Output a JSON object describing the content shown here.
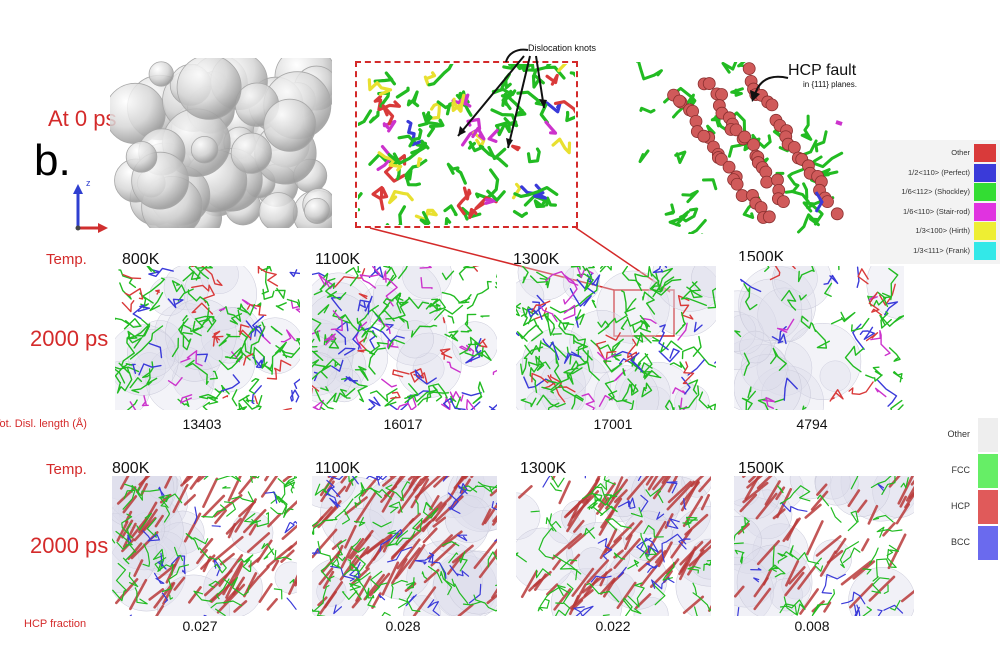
{
  "panel_label": "b.",
  "at_time_label": "At 0 ps",
  "knots_label": "Dislocation knots",
  "hcp_fault": {
    "title": "HCP fault",
    "subtitle": "in {111} planes."
  },
  "axes": {
    "z": "z"
  },
  "row1": {
    "temp_label": "Temp.",
    "time_label": "2000 ps",
    "metric_label": "Tot. Disl. length (Å)",
    "temps": [
      "800K",
      "1100K",
      "1300K",
      "1500K"
    ],
    "values": [
      "13403",
      "16017",
      "17001",
      "4794"
    ]
  },
  "row2": {
    "temp_label": "Temp.",
    "time_label": "2000 ps",
    "metric_label": "HCP fraction",
    "temps": [
      "800K",
      "1100K",
      "1300K",
      "1500K"
    ],
    "values": [
      "0.027",
      "0.028",
      "0.022",
      "0.008"
    ]
  },
  "dislocation_legend": [
    {
      "label": "Other",
      "color": "#d93a3a"
    },
    {
      "label": "1/2<110> (Perfect)",
      "color": "#3a3ad9"
    },
    {
      "label": "1/6<112> (Shockley)",
      "color": "#33dd33"
    },
    {
      "label": "1/6<110> (Stair-rod)",
      "color": "#e033e0"
    },
    {
      "label": "1/3<100> (Hirth)",
      "color": "#eeee33"
    },
    {
      "label": "1/3<111> (Frank)",
      "color": "#33e8e8"
    }
  ],
  "structure_legend": [
    {
      "label": "Other",
      "color": "#eeeeee"
    },
    {
      "label": "FCC",
      "color": "#66ee66"
    },
    {
      "label": "HCP",
      "color": "#e05a5a"
    },
    {
      "label": "BCC",
      "color": "#6a6aee"
    }
  ]
}
